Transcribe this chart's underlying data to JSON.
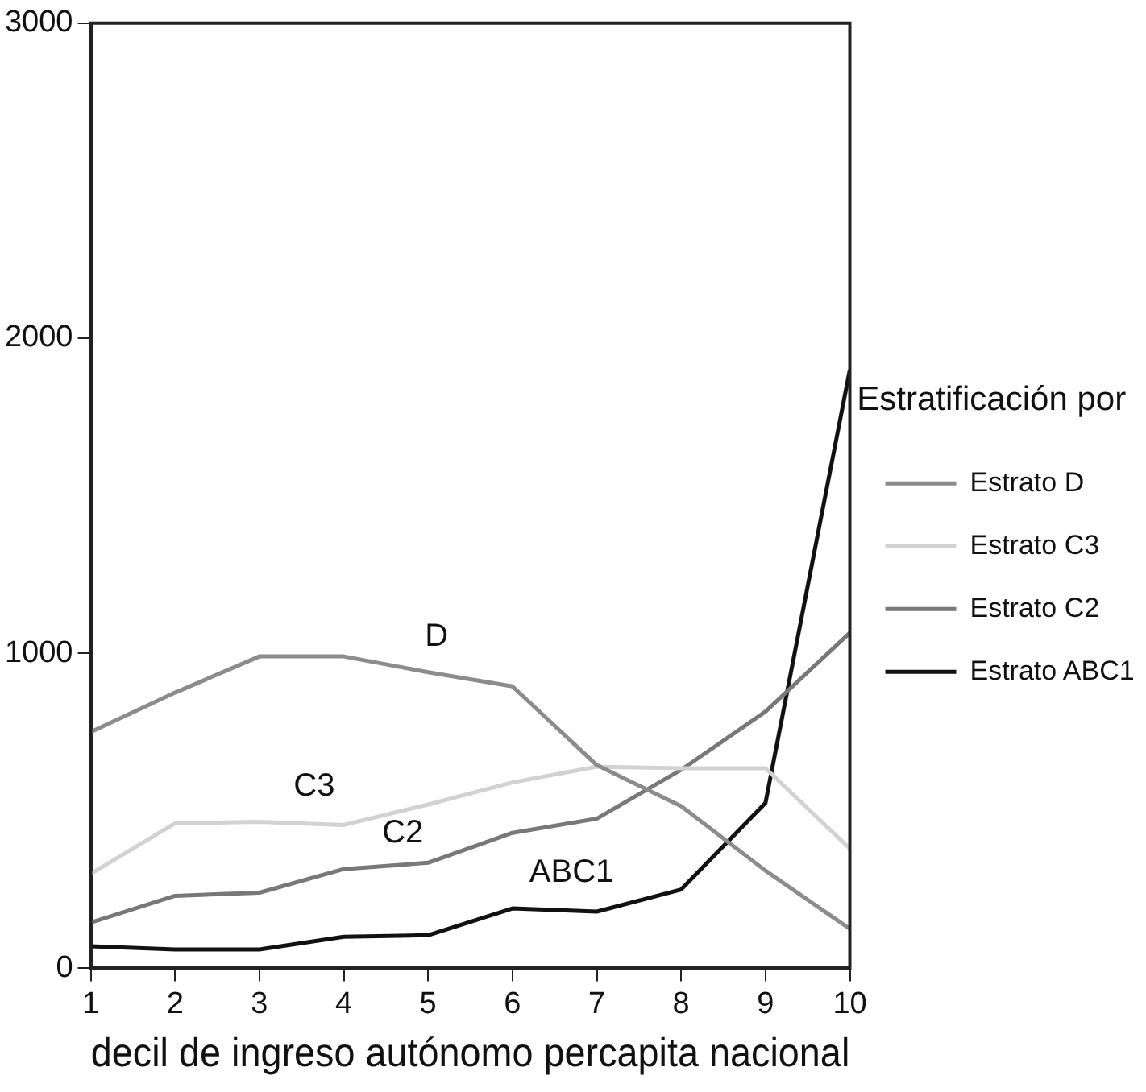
{
  "chart_data": {
    "type": "line",
    "xlabel": "decil de ingreso autónomo percapita nacional",
    "legend_title": "Estratificación por",
    "legend": "right",
    "grid": false,
    "marker": "none",
    "line_style": "solid",
    "x": [
      1,
      2,
      3,
      4,
      5,
      6,
      7,
      8,
      9,
      10
    ],
    "xlim": [
      1,
      10
    ],
    "xticks": [
      1,
      2,
      3,
      4,
      5,
      6,
      7,
      8,
      9,
      10
    ],
    "ylim": [
      0,
      3000
    ],
    "yticks": [
      0,
      1000,
      2000,
      3000
    ],
    "series": [
      {
        "name": "Estrato D",
        "color": "#8c8c8c",
        "values": [
          750,
          875,
          990,
          990,
          940,
          895,
          645,
          515,
          310,
          125
        ]
      },
      {
        "name": "Estrato C3",
        "color": "#d2d2d2",
        "values": [
          300,
          460,
          465,
          455,
          520,
          590,
          640,
          635,
          635,
          380
        ]
      },
      {
        "name": "Estrato C2",
        "color": "#787878",
        "values": [
          145,
          230,
          240,
          315,
          335,
          430,
          475,
          630,
          815,
          1065
        ]
      },
      {
        "name": "Estrato ABC1",
        "color": "#111111",
        "values": [
          70,
          60,
          60,
          100,
          105,
          190,
          180,
          250,
          525,
          1900
        ]
      }
    ],
    "annotations": [
      "D",
      "C3",
      "C2",
      "ABC1"
    ]
  }
}
